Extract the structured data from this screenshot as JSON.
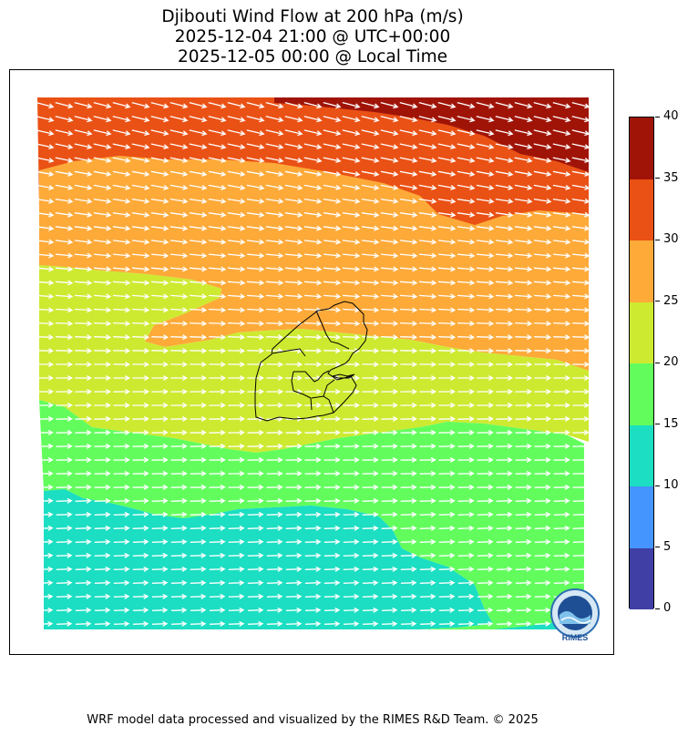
{
  "title": {
    "line1": "Djibouti Wind Flow at 200 hPa (m/s)",
    "line2": "2025-12-04 21:00 @ UTC+00:00",
    "line3": "2025-12-05 00:00 @ Local Time"
  },
  "colorbar": {
    "ticks": [
      "0",
      "5",
      "10",
      "15",
      "20",
      "25",
      "30",
      "35",
      "40"
    ],
    "colors": [
      "#3f3fa6",
      "#4595ff",
      "#1bdec2",
      "#62fd5d",
      "#cdea31",
      "#fdaa39",
      "#ea5115",
      "#a01408"
    ]
  },
  "map": {
    "region": "Djibouti",
    "wind_arrow_color": "#ffffff",
    "border_color": "#000000"
  },
  "logo": {
    "text": "RIMES"
  },
  "footer": "WRF model data processed and visualized by the RIMES R&D Team. © 2025"
}
